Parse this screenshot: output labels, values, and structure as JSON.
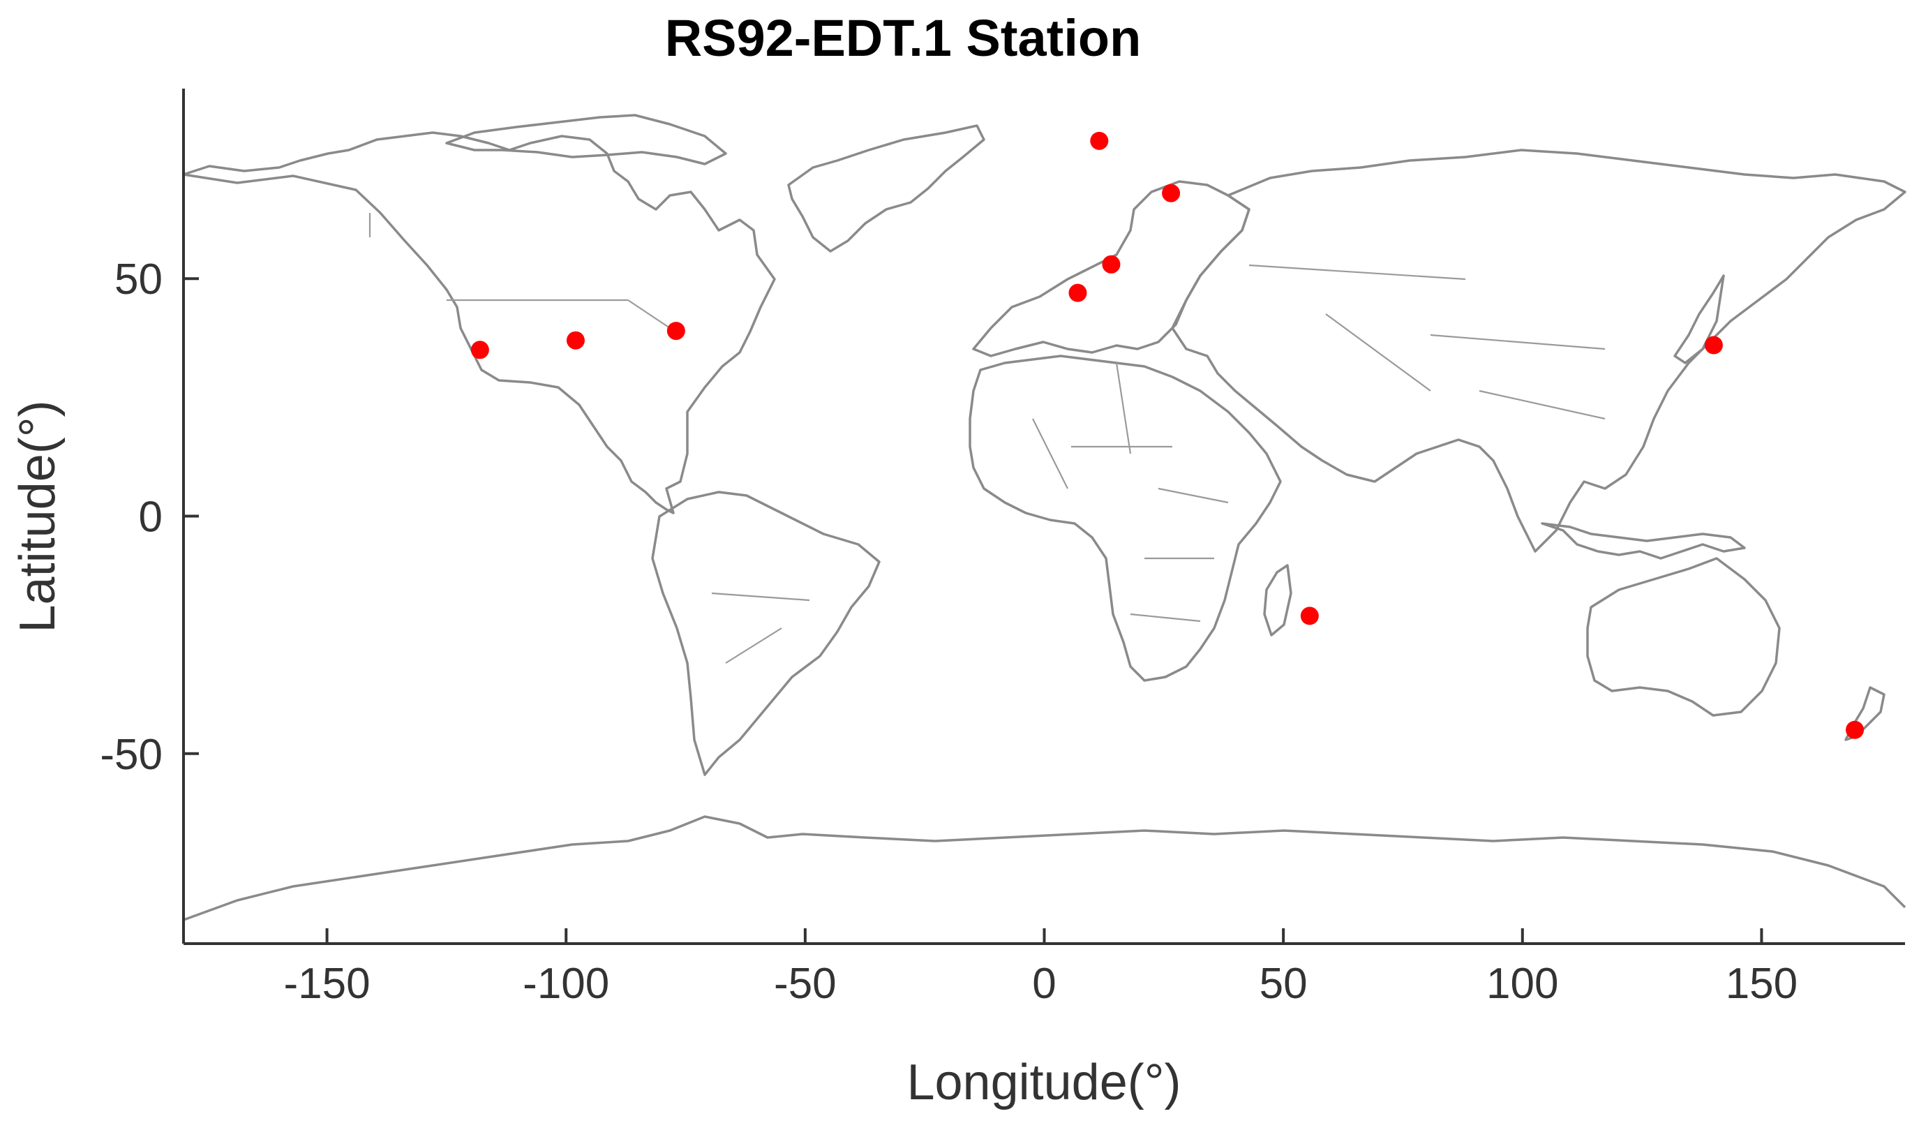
{
  "chart_data": {
    "type": "scatter",
    "title": "RS92-EDT.1 Station",
    "xlabel": "Longitude(°)",
    "ylabel": "Latitude(°)",
    "xlim": [
      -180,
      180
    ],
    "ylim": [
      -90,
      90
    ],
    "xticks": [
      -150,
      -100,
      -50,
      0,
      50,
      100,
      150
    ],
    "yticks": [
      -50,
      0,
      50
    ],
    "grid": false,
    "basemap": "world coastlines and country borders",
    "marker_color": "#ff0000",
    "series": [
      {
        "points": [
          {
            "lon": -118,
            "lat": 35
          },
          {
            "lon": -98,
            "lat": 37
          },
          {
            "lon": -77,
            "lat": 39
          },
          {
            "lon": 11.5,
            "lat": 79
          },
          {
            "lon": 26.5,
            "lat": 68
          },
          {
            "lon": 14,
            "lat": 53
          },
          {
            "lon": 7,
            "lat": 47
          },
          {
            "lon": 55.5,
            "lat": -21
          },
          {
            "lon": 140,
            "lat": 36
          },
          {
            "lon": 169.5,
            "lat": -45
          }
        ]
      }
    ]
  }
}
